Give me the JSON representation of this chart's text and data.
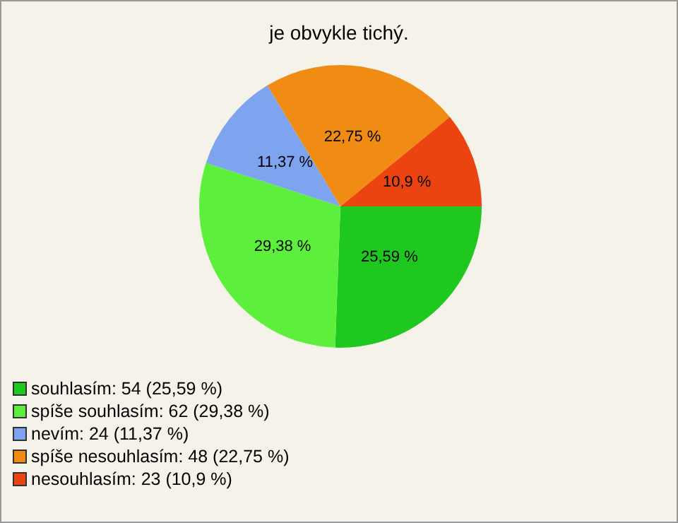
{
  "chart_data": {
    "type": "pie",
    "title": "je obvykle tichý.",
    "categories": [
      "souhlasím: 54 (25,59 %)",
      "spíše souhlasím: 62 (29,38 %)",
      "nevím: 24 (11,37 %)",
      "spíše nesouhlasím: 48 (22,75 %)",
      "nesouhlasím: 23 (10,9 %)"
    ],
    "values": [
      25.59,
      29.38,
      11.37,
      22.75,
      10.9
    ],
    "value_labels": [
      "25,59 %",
      "29,38 %",
      "11,37 %",
      "22,75 %",
      "10,9 %"
    ],
    "colors": [
      "#1ec81e",
      "#5cf03c",
      "#7ea4f0",
      "#f08c14",
      "#ec4410"
    ],
    "legend": "bottom"
  }
}
